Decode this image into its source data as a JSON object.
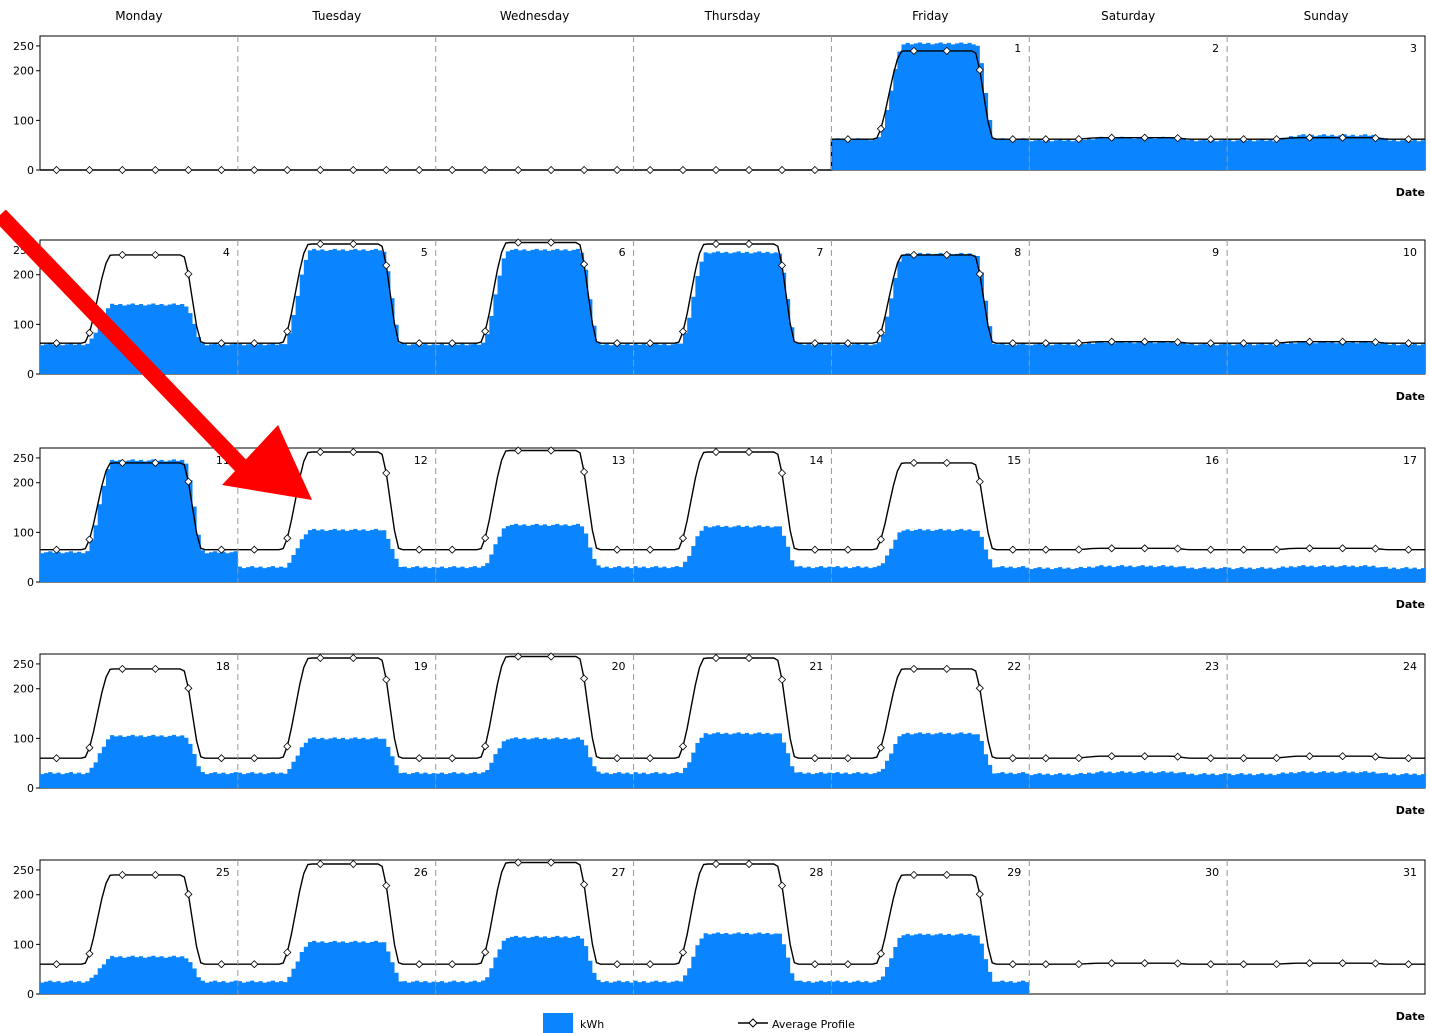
{
  "chart_data": {
    "type": "area",
    "title": "",
    "weekday_headers": [
      "Monday",
      "Tuesday",
      "Wednesday",
      "Thursday",
      "Friday",
      "Saturday",
      "Sunday"
    ],
    "xlabel": "Date",
    "ylabel": "",
    "ylim": [
      0,
      270
    ],
    "yticks": [
      "0",
      "100",
      "200",
      "250"
    ],
    "grid": "vertical dashed day separators",
    "legend_position": "bottom-center",
    "series": [
      {
        "name": "kWh",
        "kind": "area",
        "color": "#0a84ff"
      },
      {
        "name": "Average Profile",
        "kind": "line-with-diamond-markers",
        "color": "#000000"
      }
    ],
    "weeks": [
      {
        "days": [
          {
            "label": "",
            "kwh_base": 0,
            "kwh_peak": 0,
            "avg_base": 0,
            "avg_peak": 0
          },
          {
            "label": "",
            "kwh_base": 0,
            "kwh_peak": 0,
            "avg_base": 0,
            "avg_peak": 0
          },
          {
            "label": "",
            "kwh_base": 0,
            "kwh_peak": 0,
            "avg_base": 0,
            "avg_peak": 0
          },
          {
            "label": "",
            "kwh_base": 0,
            "kwh_peak": 0,
            "avg_base": 0,
            "avg_peak": 0
          },
          {
            "label": "1",
            "kwh_base": 62,
            "kwh_peak": 255,
            "avg_base": 62,
            "avg_peak": 240
          },
          {
            "label": "2",
            "kwh_base": 60,
            "kwh_peak": 65,
            "avg_base": 62,
            "avg_peak": 65
          },
          {
            "label": "3",
            "kwh_base": 60,
            "kwh_peak": 70,
            "avg_base": 62,
            "avg_peak": 65
          }
        ]
      },
      {
        "days": [
          {
            "label": "4",
            "kwh_base": 60,
            "kwh_peak": 140,
            "avg_base": 62,
            "avg_peak": 240
          },
          {
            "label": "5",
            "kwh_base": 60,
            "kwh_peak": 250,
            "avg_base": 62,
            "avg_peak": 262
          },
          {
            "label": "6",
            "kwh_base": 60,
            "kwh_peak": 250,
            "avg_base": 62,
            "avg_peak": 265
          },
          {
            "label": "7",
            "kwh_base": 60,
            "kwh_peak": 245,
            "avg_base": 62,
            "avg_peak": 262
          },
          {
            "label": "8",
            "kwh_base": 60,
            "kwh_peak": 242,
            "avg_base": 62,
            "avg_peak": 240
          },
          {
            "label": "9",
            "kwh_base": 60,
            "kwh_peak": 64,
            "avg_base": 62,
            "avg_peak": 65
          },
          {
            "label": "10",
            "kwh_base": 60,
            "kwh_peak": 64,
            "avg_base": 62,
            "avg_peak": 65
          }
        ]
      },
      {
        "days": [
          {
            "label": "11",
            "kwh_base": 60,
            "kwh_peak": 245,
            "avg_base": 65,
            "avg_peak": 240
          },
          {
            "label": "12",
            "kwh_base": 30,
            "kwh_peak": 105,
            "avg_base": 65,
            "avg_peak": 262
          },
          {
            "label": "13",
            "kwh_base": 30,
            "kwh_peak": 115,
            "avg_base": 65,
            "avg_peak": 265
          },
          {
            "label": "14",
            "kwh_base": 30,
            "kwh_peak": 112,
            "avg_base": 65,
            "avg_peak": 262
          },
          {
            "label": "15",
            "kwh_base": 30,
            "kwh_peak": 105,
            "avg_base": 65,
            "avg_peak": 240
          },
          {
            "label": "16",
            "kwh_base": 28,
            "kwh_peak": 32,
            "avg_base": 65,
            "avg_peak": 68
          },
          {
            "label": "17",
            "kwh_base": 28,
            "kwh_peak": 32,
            "avg_base": 65,
            "avg_peak": 68
          }
        ]
      },
      {
        "days": [
          {
            "label": "18",
            "kwh_base": 30,
            "kwh_peak": 105,
            "avg_base": 60,
            "avg_peak": 240
          },
          {
            "label": "19",
            "kwh_base": 30,
            "kwh_peak": 100,
            "avg_base": 60,
            "avg_peak": 262
          },
          {
            "label": "20",
            "kwh_base": 30,
            "kwh_peak": 100,
            "avg_base": 60,
            "avg_peak": 265
          },
          {
            "label": "21",
            "kwh_base": 30,
            "kwh_peak": 110,
            "avg_base": 60,
            "avg_peak": 262
          },
          {
            "label": "22",
            "kwh_base": 30,
            "kwh_peak": 110,
            "avg_base": 60,
            "avg_peak": 240
          },
          {
            "label": "23",
            "kwh_base": 28,
            "kwh_peak": 32,
            "avg_base": 60,
            "avg_peak": 64
          },
          {
            "label": "24",
            "kwh_base": 28,
            "kwh_peak": 32,
            "avg_base": 60,
            "avg_peak": 64
          }
        ]
      },
      {
        "days": [
          {
            "label": "25",
            "kwh_base": 25,
            "kwh_peak": 75,
            "avg_base": 60,
            "avg_peak": 240
          },
          {
            "label": "26",
            "kwh_base": 25,
            "kwh_peak": 105,
            "avg_base": 60,
            "avg_peak": 262
          },
          {
            "label": "27",
            "kwh_base": 25,
            "kwh_peak": 115,
            "avg_base": 60,
            "avg_peak": 265
          },
          {
            "label": "28",
            "kwh_base": 25,
            "kwh_peak": 122,
            "avg_base": 60,
            "avg_peak": 262
          },
          {
            "label": "29",
            "kwh_base": 25,
            "kwh_peak": 120,
            "avg_base": 60,
            "avg_peak": 240
          },
          {
            "label": "30",
            "kwh_base": 0,
            "kwh_peak": 0,
            "avg_base": 60,
            "avg_peak": 62
          },
          {
            "label": "31",
            "kwh_base": 0,
            "kwh_peak": 0,
            "avg_base": 60,
            "avg_peak": 62
          }
        ]
      }
    ],
    "annotation": {
      "type": "arrow",
      "color": "#ff0000",
      "points_to": "12"
    }
  },
  "legend": {
    "kwh_label": "kWh",
    "avg_label": "Average Profile"
  }
}
